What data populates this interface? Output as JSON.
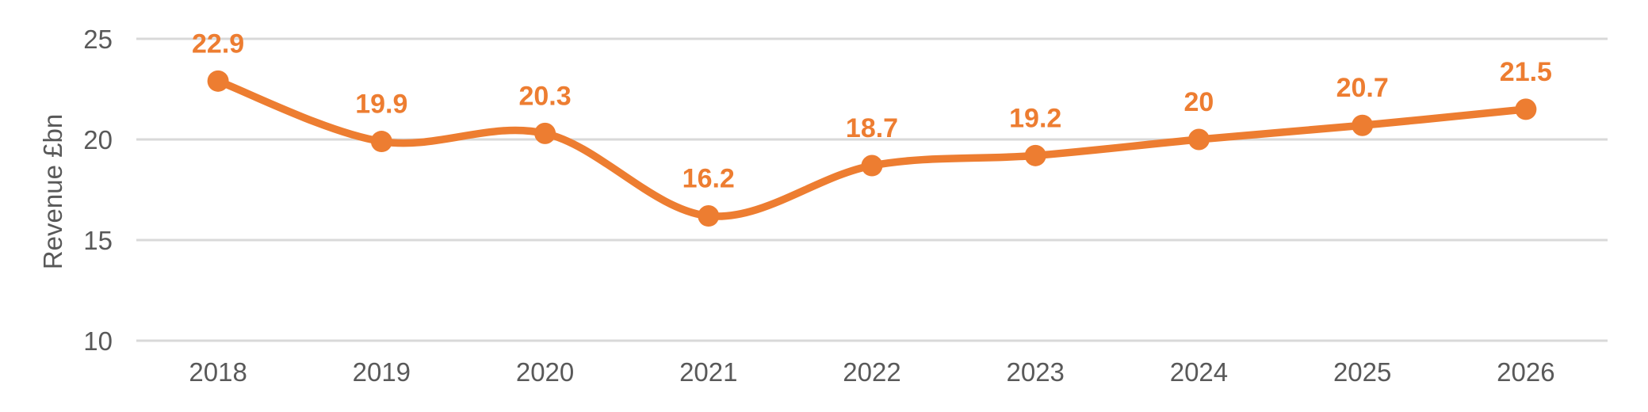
{
  "chart_data": {
    "type": "line",
    "title": "",
    "categories": [
      "2018",
      "2019",
      "2020",
      "2021",
      "2022",
      "2023",
      "2024",
      "2025",
      "2026"
    ],
    "series": [
      {
        "name": "Revenue",
        "values": [
          22.9,
          19.9,
          20.3,
          16.2,
          18.7,
          19.2,
          20,
          20.7,
          21.5
        ]
      }
    ],
    "value_labels": [
      "22.9",
      "19.9",
      "20.3",
      "16.2",
      "18.7",
      "19.2",
      "20",
      "20.7",
      "21.5"
    ],
    "xlabel": "",
    "ylabel": "Revenue £bn",
    "ylim": [
      10,
      25
    ],
    "yticks": [
      25,
      20,
      15,
      10
    ],
    "ytick_labels": [
      "25",
      "20",
      "15",
      "10"
    ],
    "grid": "horizontal",
    "legend": "none",
    "line_style": "smooth",
    "marker": "circle",
    "data_label_position": "above",
    "colors": {
      "series": "#ED7D31",
      "data_label": "#ED7D31",
      "axis_text": "#595959",
      "gridline": "#D9D9D9",
      "background": "#FFFFFF"
    }
  }
}
